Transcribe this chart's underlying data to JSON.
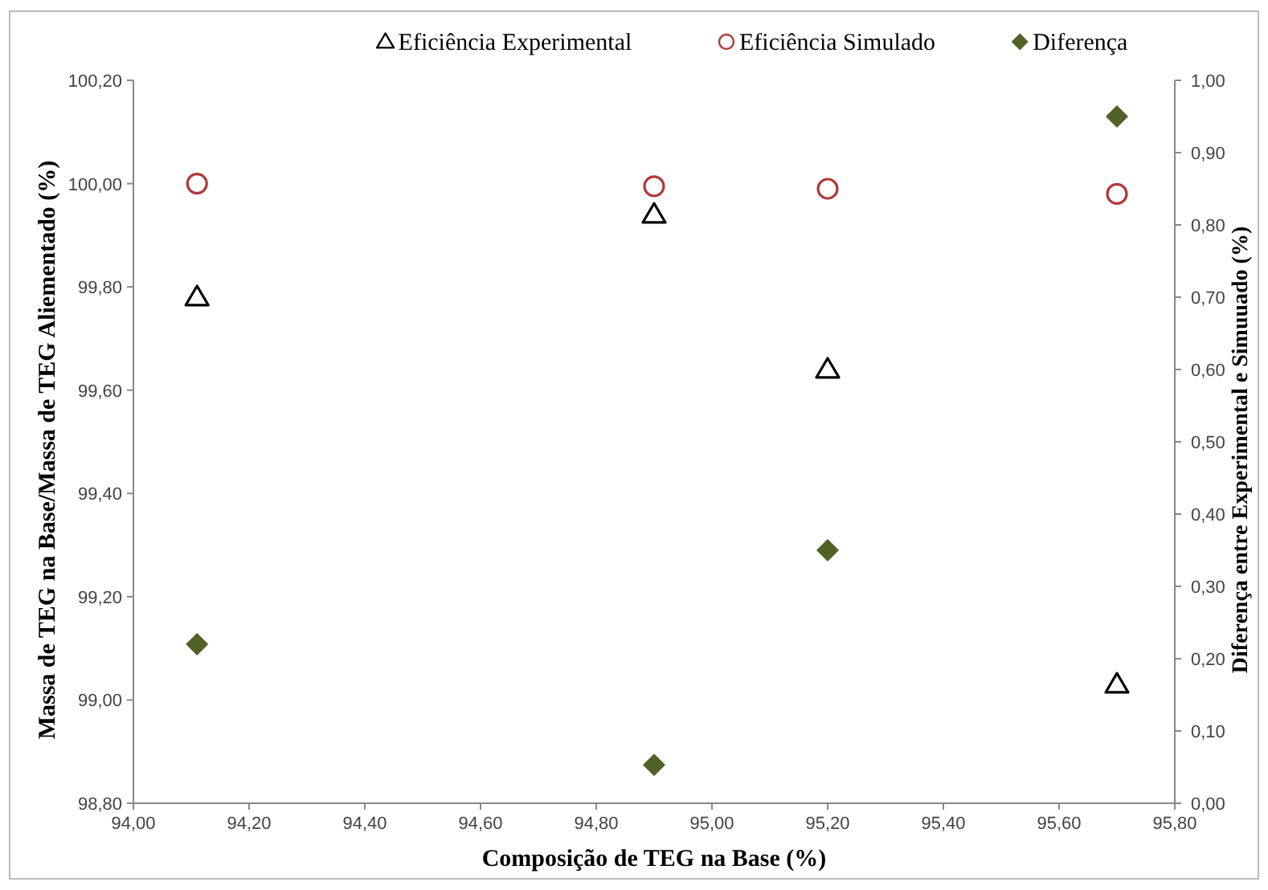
{
  "chart_data": {
    "type": "scatter",
    "xlabel": "Composição de TEG na Base (%)",
    "ylabel": "Massa de TEG na Base/Massa de TEG Aliementado (%)",
    "y2label": "Diferença entre Experimental e Simuuado (%)",
    "x": [
      94.11,
      94.9,
      95.2,
      95.7
    ],
    "series": [
      {
        "name": "Eficiência Experimental",
        "color": "#000000",
        "marker": "triangle",
        "values": [
          99.78,
          99.94,
          99.64,
          99.03
        ]
      },
      {
        "name": "Eficiência Simulado",
        "color": "#b03a3a",
        "marker": "circle",
        "values": [
          100.0,
          99.995,
          99.99,
          99.98
        ]
      },
      {
        "name": "Diferença",
        "color": "#4f6228",
        "marker": "diamond",
        "axis": "y2",
        "values": [
          0.22,
          0.053,
          0.35,
          0.95
        ]
      }
    ],
    "xlim": [
      94,
      95.8
    ],
    "xticks": [
      {
        "value": 94,
        "label": "94,00"
      },
      {
        "value": 94.2,
        "label": "94,20"
      },
      {
        "value": 94.4,
        "label": "94,40"
      },
      {
        "value": 94.6,
        "label": "94,60"
      },
      {
        "value": 94.8,
        "label": "94,80"
      },
      {
        "value": 95,
        "label": "95,00"
      },
      {
        "value": 95.2,
        "label": "95,20"
      },
      {
        "value": 95.4,
        "label": "95,40"
      },
      {
        "value": 95.6,
        "label": "95,60"
      },
      {
        "value": 95.8,
        "label": "95,80"
      }
    ],
    "ylim": [
      98.8,
      100.2
    ],
    "yticks": [
      {
        "value": 98.8,
        "label": "98,80"
      },
      {
        "value": 99,
        "label": "99,00"
      },
      {
        "value": 99.2,
        "label": "99,20"
      },
      {
        "value": 99.4,
        "label": "99,40"
      },
      {
        "value": 99.6,
        "label": "99,60"
      },
      {
        "value": 99.8,
        "label": "99,80"
      },
      {
        "value": 100,
        "label": "100,00"
      },
      {
        "value": 100.2,
        "label": "100,20"
      }
    ],
    "y2lim": [
      0,
      1
    ],
    "y2ticks": [
      {
        "value": 0,
        "label": "0,00"
      },
      {
        "value": 0.1,
        "label": "0,10"
      },
      {
        "value": 0.2,
        "label": "0,20"
      },
      {
        "value": 0.3,
        "label": "0,30"
      },
      {
        "value": 0.4,
        "label": "0,40"
      },
      {
        "value": 0.5,
        "label": "0,50"
      },
      {
        "value": 0.6,
        "label": "0,60"
      },
      {
        "value": 0.7,
        "label": "0,70"
      },
      {
        "value": 0.8,
        "label": "0,80"
      },
      {
        "value": 0.9,
        "label": "0,90"
      },
      {
        "value": 1,
        "label": "1,00"
      }
    ],
    "grid": false,
    "legend": "top"
  }
}
